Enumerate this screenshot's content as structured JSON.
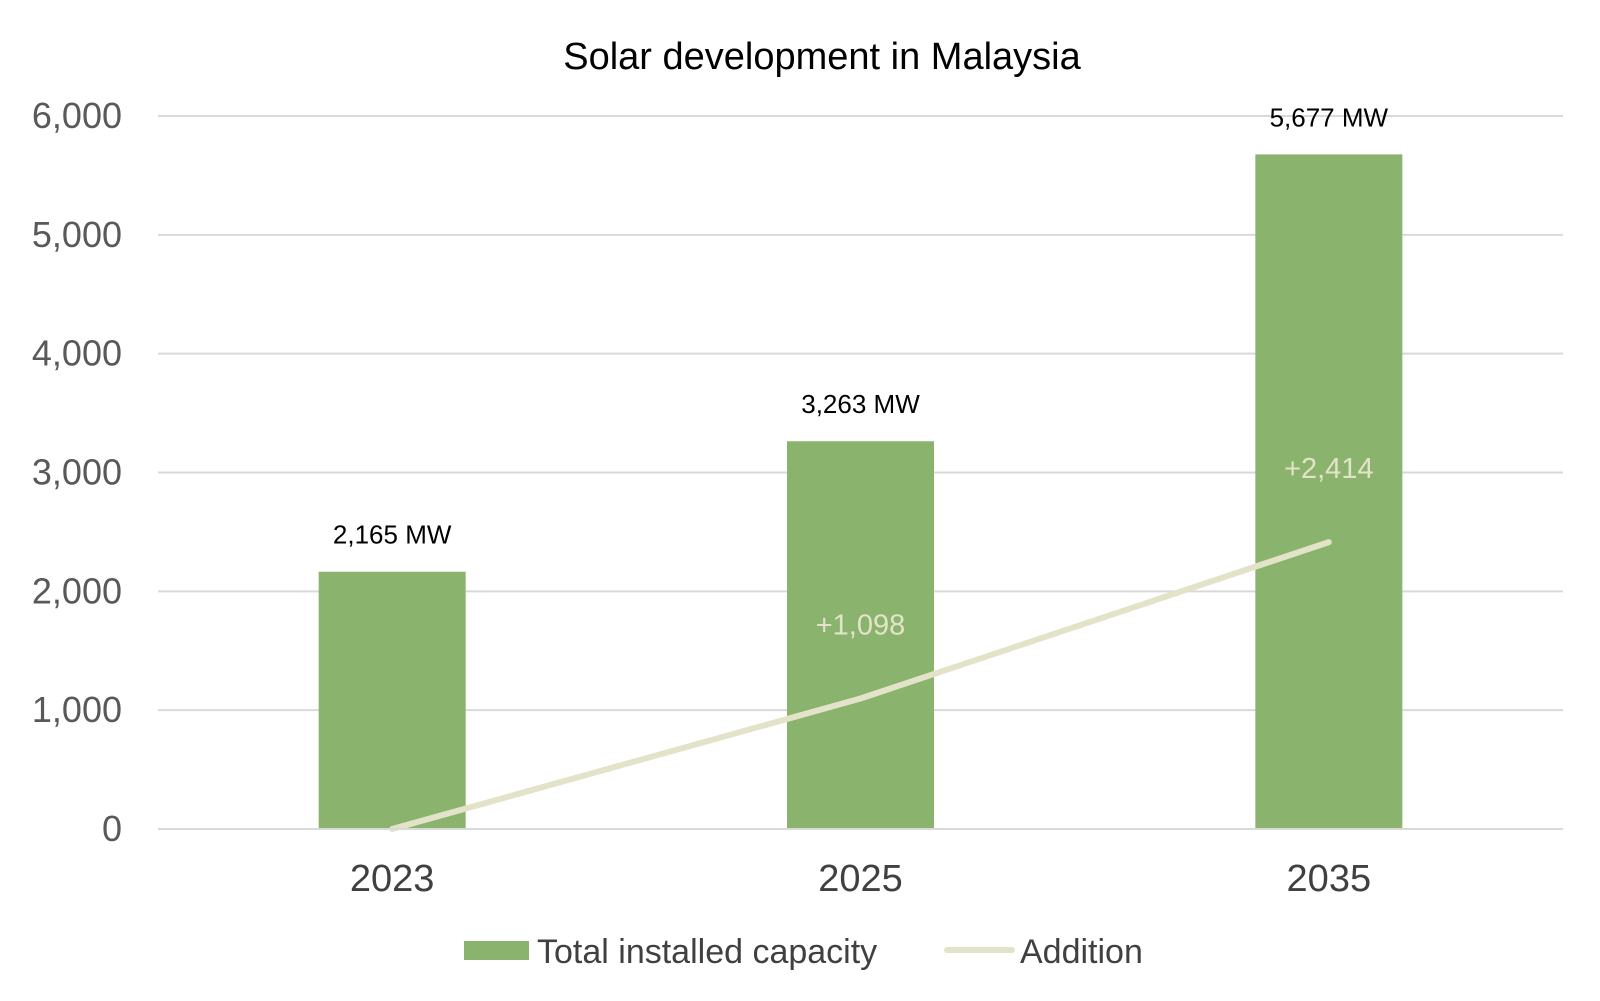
{
  "chart_data": {
    "type": "bar",
    "title": "Solar development in Malaysia",
    "xlabel": "",
    "ylabel": "",
    "categories": [
      "2023",
      "2025",
      "2035"
    ],
    "ylim": [
      0,
      6000
    ],
    "y_ticks": [
      0,
      1000,
      2000,
      3000,
      4000,
      5000,
      6000
    ],
    "y_tick_labels": [
      "0",
      "1,000",
      "2,000",
      "3,000",
      "4,000",
      "5,000",
      "6,000"
    ],
    "grid": true,
    "legend_position": "bottom",
    "series": [
      {
        "name": "Total installed capacity",
        "type": "bar",
        "values": [
          2165,
          3263,
          5677
        ],
        "labels": [
          "2,165 MW",
          "3,263 MW",
          "5,677 MW"
        ],
        "color": "#8ab46e"
      },
      {
        "name": "Addition",
        "type": "line",
        "values": [
          0,
          1098,
          2414
        ],
        "labels": [
          "",
          "+1,098",
          "+2,414"
        ],
        "color": "#e3e3c9"
      }
    ]
  }
}
